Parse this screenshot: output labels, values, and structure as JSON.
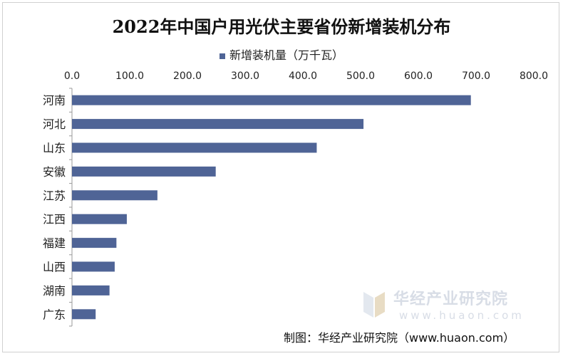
{
  "chart_data": {
    "type": "bar",
    "orientation": "horizontal",
    "title": "2022年中国户用光伏主要省份新增装机分布",
    "series": [
      {
        "name": "新增装机量（万千瓦）",
        "color": "#4f6496",
        "values": [
          691,
          505,
          424,
          249,
          148,
          95,
          77,
          74,
          65,
          41
        ]
      }
    ],
    "categories": [
      "河南",
      "河北",
      "山东",
      "安徽",
      "江苏",
      "江西",
      "福建",
      "山西",
      "湖南",
      "广东"
    ],
    "xlim": [
      0,
      800
    ],
    "xticks": [
      "0.0",
      "100.0",
      "200.0",
      "300.0",
      "400.0",
      "500.0",
      "600.0",
      "700.0",
      "800.0"
    ],
    "grid": false,
    "legend_position": "top"
  },
  "watermark": {
    "name": "华经产业研究院",
    "url": "www.huaon.com"
  },
  "source_text": "制图：华经产业研究院（www.huaon.com）"
}
